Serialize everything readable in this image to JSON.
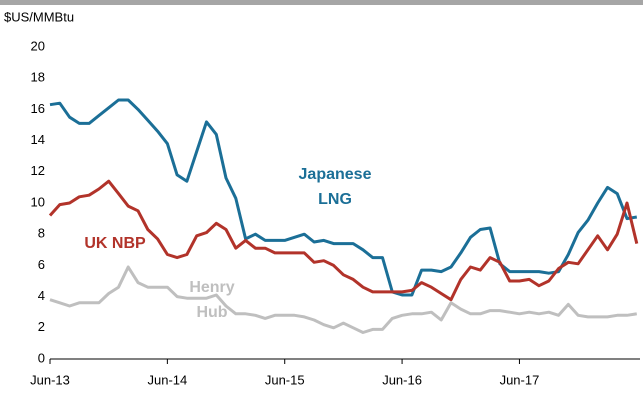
{
  "chart_data": {
    "type": "line",
    "unit_label": "$US/MMBtu",
    "categories": [
      "Jun-13",
      null,
      null,
      null,
      null,
      null,
      null,
      null,
      null,
      null,
      null,
      null,
      "Jun-14",
      null,
      null,
      null,
      null,
      null,
      null,
      null,
      null,
      null,
      null,
      null,
      "Jun-15",
      null,
      null,
      null,
      null,
      null,
      null,
      null,
      null,
      null,
      null,
      null,
      "Jun-16",
      null,
      null,
      null,
      null,
      null,
      null,
      null,
      null,
      null,
      null,
      null,
      "Jun-17",
      null,
      null,
      null,
      null,
      null,
      null,
      null,
      null,
      null,
      null,
      null,
      null
    ],
    "series": [
      {
        "name": [
          "Japanese",
          "LNG"
        ],
        "color": "#1b6f97",
        "values": [
          16.3,
          16.4,
          15.5,
          15.1,
          15.1,
          15.6,
          16.1,
          16.6,
          16.6,
          16.0,
          15.3,
          14.6,
          13.8,
          11.8,
          11.4,
          13.3,
          15.2,
          14.4,
          11.6,
          10.3,
          7.7,
          8.0,
          7.6,
          7.6,
          7.6,
          7.8,
          8.0,
          7.5,
          7.6,
          7.4,
          7.4,
          7.4,
          7.0,
          6.5,
          6.5,
          4.3,
          4.1,
          4.1,
          5.7,
          5.7,
          5.6,
          5.9,
          6.8,
          7.8,
          8.3,
          8.4,
          6.1,
          5.6,
          5.6,
          5.6,
          5.6,
          5.5,
          5.6,
          6.7,
          8.1,
          8.9,
          10.0,
          11.0,
          10.6,
          9.0,
          9.1
        ]
      },
      {
        "name": [
          "UK NBP"
        ],
        "color": "#b2332a",
        "values": [
          9.2,
          9.9,
          10.0,
          10.4,
          10.5,
          10.9,
          11.4,
          10.6,
          9.8,
          9.5,
          8.3,
          7.7,
          6.7,
          6.5,
          6.7,
          7.9,
          8.1,
          8.7,
          8.3,
          7.1,
          7.6,
          7.1,
          7.1,
          6.8,
          6.8,
          6.8,
          6.8,
          6.2,
          6.3,
          6.0,
          5.4,
          5.1,
          4.6,
          4.3,
          4.3,
          4.3,
          4.3,
          4.4,
          4.9,
          4.6,
          4.2,
          3.8,
          5.1,
          5.9,
          5.7,
          6.5,
          6.2,
          5.0,
          5.0,
          5.1,
          4.7,
          5.0,
          5.8,
          6.2,
          6.1,
          7.0,
          7.9,
          7.0,
          8.0,
          10.0,
          7.4
        ]
      },
      {
        "name": [
          "Henry",
          "Hub"
        ],
        "color": "#bfbfbf",
        "values": [
          3.8,
          3.6,
          3.4,
          3.6,
          3.6,
          3.6,
          4.2,
          4.6,
          5.9,
          4.9,
          4.6,
          4.6,
          4.6,
          4.0,
          3.9,
          3.9,
          3.9,
          4.1,
          3.4,
          2.9,
          2.9,
          2.8,
          2.6,
          2.8,
          2.8,
          2.8,
          2.7,
          2.5,
          2.2,
          2.0,
          2.3,
          2.0,
          1.7,
          1.9,
          1.9,
          2.6,
          2.8,
          2.9,
          2.9,
          3.0,
          2.5,
          3.6,
          3.2,
          2.9,
          2.9,
          3.1,
          3.1,
          3.0,
          2.9,
          3.0,
          2.9,
          3.0,
          2.8,
          3.5,
          2.8,
          2.7,
          2.7,
          2.7,
          2.8,
          2.8,
          2.9
        ]
      }
    ],
    "ylim": [
      0,
      20
    ],
    "yticks": [
      0,
      2,
      4,
      6,
      8,
      10,
      12,
      14,
      16,
      18,
      20
    ],
    "grid": false
  }
}
